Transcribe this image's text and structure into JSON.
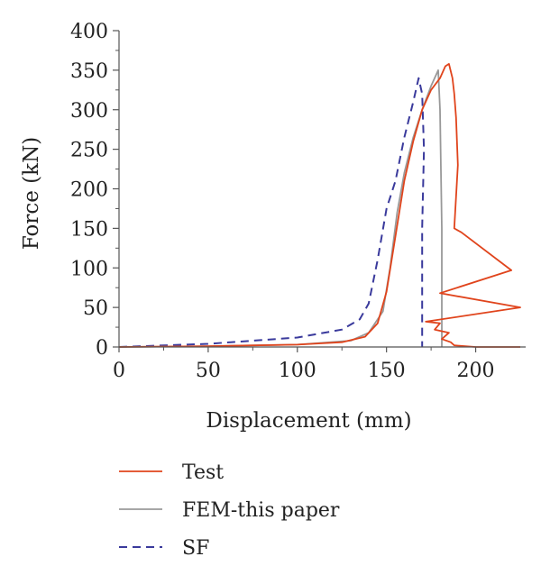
{
  "chart_data": {
    "type": "line",
    "title": "",
    "xlabel": "Displacement (mm)",
    "ylabel": "Force (kN)",
    "xlim": [
      0,
      225
    ],
    "ylim": [
      0,
      400
    ],
    "xticks": [
      0,
      50,
      100,
      150,
      200
    ],
    "yticks": [
      0,
      50,
      100,
      150,
      200,
      250,
      300,
      350,
      400
    ],
    "x_tick_labels": [
      "0",
      "50",
      "100",
      "150",
      "200"
    ],
    "y_tick_labels": [
      "0",
      "50",
      "100",
      "150",
      "200",
      "250",
      "300",
      "350",
      "400"
    ],
    "grid": false,
    "legend_position": "bottom",
    "series": [
      {
        "name": "Test",
        "color": "#e0441c",
        "style": "solid",
        "points": [
          [
            0,
            0
          ],
          [
            50,
            1
          ],
          [
            100,
            3
          ],
          [
            125,
            6
          ],
          [
            138,
            13
          ],
          [
            145,
            30
          ],
          [
            150,
            70
          ],
          [
            155,
            140
          ],
          [
            160,
            210
          ],
          [
            165,
            260
          ],
          [
            170,
            300
          ],
          [
            175,
            325
          ],
          [
            180,
            340
          ],
          [
            183,
            355
          ],
          [
            185,
            358
          ],
          [
            187,
            340
          ],
          [
            188,
            320
          ],
          [
            189,
            290
          ],
          [
            190,
            230
          ],
          [
            188,
            150
          ],
          [
            192,
            145
          ],
          [
            220,
            97
          ],
          [
            180,
            68
          ],
          [
            225,
            50
          ],
          [
            172,
            32
          ],
          [
            180,
            30
          ],
          [
            177,
            22
          ],
          [
            185,
            18
          ],
          [
            181,
            10
          ],
          [
            186,
            6
          ],
          [
            188,
            2
          ],
          [
            200,
            0
          ],
          [
            225,
            0
          ]
        ]
      },
      {
        "name": "FEM-this paper",
        "color": "#999999",
        "style": "solid",
        "points": [
          [
            0,
            0
          ],
          [
            50,
            1
          ],
          [
            100,
            3
          ],
          [
            130,
            8
          ],
          [
            140,
            18
          ],
          [
            148,
            45
          ],
          [
            152,
            100
          ],
          [
            156,
            170
          ],
          [
            160,
            220
          ],
          [
            165,
            265
          ],
          [
            170,
            300
          ],
          [
            175,
            330
          ],
          [
            179,
            350
          ],
          [
            180,
            300
          ],
          [
            181,
            150
          ],
          [
            181,
            50
          ],
          [
            181,
            0
          ]
        ]
      },
      {
        "name": "SF",
        "color": "#3a3a9c",
        "style": "dashed",
        "points": [
          [
            0,
            0
          ],
          [
            50,
            4
          ],
          [
            100,
            12
          ],
          [
            125,
            22
          ],
          [
            135,
            35
          ],
          [
            140,
            55
          ],
          [
            145,
            110
          ],
          [
            150,
            175
          ],
          [
            155,
            210
          ],
          [
            160,
            265
          ],
          [
            165,
            310
          ],
          [
            168,
            340
          ],
          [
            170,
            320
          ],
          [
            171,
            250
          ],
          [
            170,
            150
          ],
          [
            170,
            50
          ],
          [
            170,
            0
          ]
        ]
      }
    ]
  }
}
